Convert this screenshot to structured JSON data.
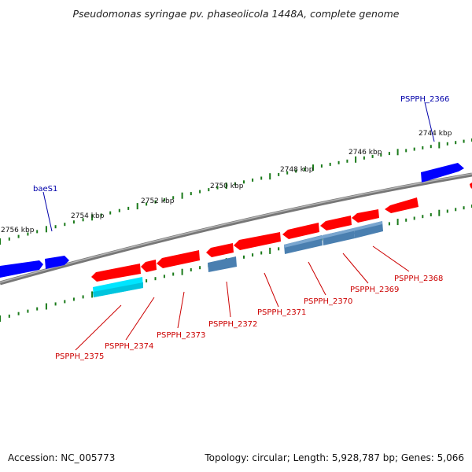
{
  "title": "Pseudomonas syringae pv. phaseolicola 1448A, complete genome",
  "footer": {
    "accession": "Accession: NC_005773",
    "summary": "Topology: circular; Length: 5,928,787 bp; Genes: 5,066"
  },
  "colors": {
    "backbone": "#8a8a8a",
    "forward_gene": "#0000ff",
    "reverse_gene": "#ff0000",
    "operon_blue": "#4a7fb0",
    "operon_cyan": "#00ffff",
    "tick": "#1a7a1a",
    "label_blue": "#0000aa",
    "label_red": "#cc0000"
  },
  "scale_labels": [
    "2744 kbp",
    "2746 kbp",
    "2748 kbp",
    "2750 kbp",
    "2752 kbp",
    "2754 kbp",
    "2756 kbp"
  ],
  "gene_labels_forward": [
    "PSPPH_2366",
    "baeS1"
  ],
  "gene_labels_reverse": [
    "PSPPH_2368",
    "PSPPH_2369",
    "PSPPH_2370",
    "PSPPH_2371",
    "PSPPH_2372",
    "PSPPH_2373",
    "PSPPH_2374",
    "PSPPH_2375"
  ]
}
